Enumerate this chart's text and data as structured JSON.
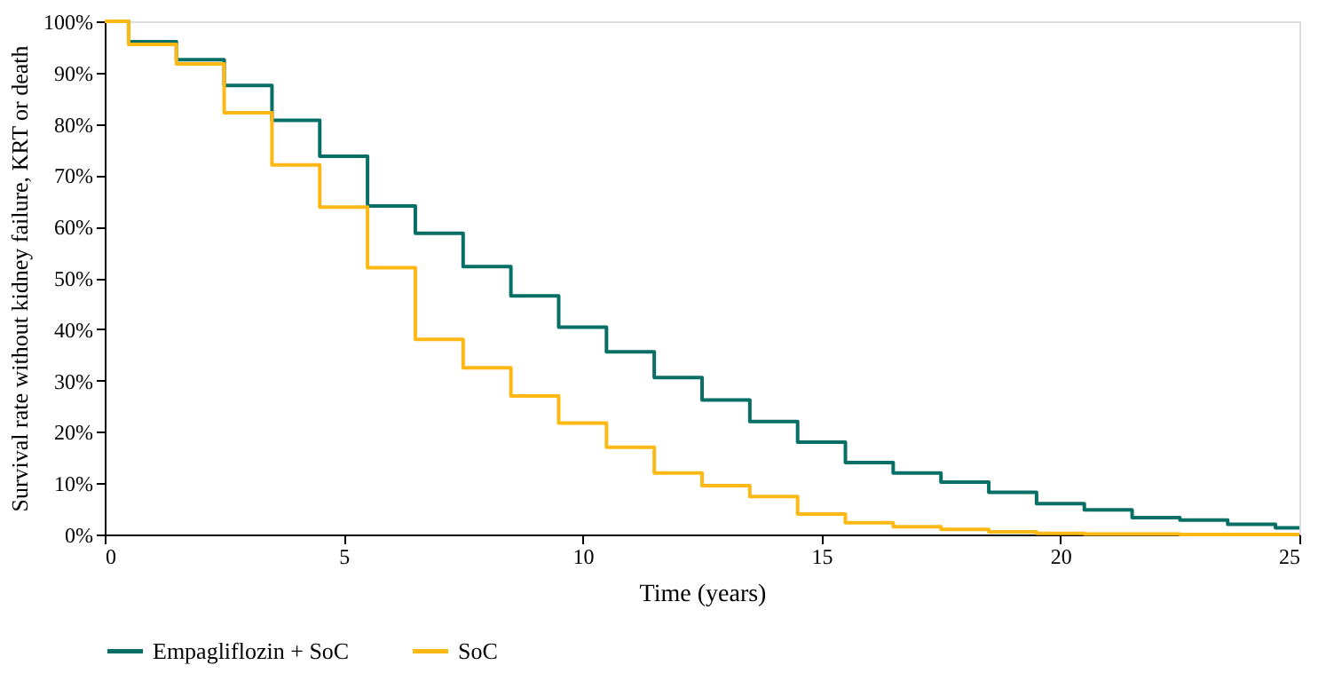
{
  "chart_data": {
    "type": "step",
    "xlabel": "Time (years)",
    "ylabel": "Survival rate without kidney failure, KRT or death",
    "x": [
      0,
      0.5,
      1.5,
      2.5,
      3.5,
      4.5,
      5.5,
      6.5,
      7.5,
      8.5,
      9.5,
      10.5,
      11.5,
      12.5,
      13.5,
      14.5,
      15.5,
      16.5,
      17.5,
      18.5,
      19.5,
      20.5,
      21.5,
      22.5,
      23.5,
      24.5,
      25
    ],
    "series": [
      {
        "name": "Empagliflozin + SoC",
        "color": "#076f66",
        "values": [
          100,
          96,
          92.5,
          87.5,
          80.7,
          73.7,
          64,
          58.7,
          52.2,
          46.5,
          40.4,
          35.6,
          30.6,
          26.2,
          22,
          18,
          14,
          12,
          10.2,
          8.2,
          6,
          4.8,
          3.3,
          2.8,
          2,
          1.3,
          1.3
        ]
      },
      {
        "name": "SoC",
        "color": "#fdb813",
        "values": [
          100,
          95.5,
          91.7,
          82.2,
          72,
          63.8,
          52,
          38,
          32.5,
          27,
          21.7,
          17,
          12,
          9.5,
          7.4,
          4,
          2.3,
          1.5,
          1,
          0.5,
          0.2,
          0.1,
          0.1,
          0,
          0,
          0,
          0
        ]
      }
    ],
    "xlim": [
      0,
      25
    ],
    "xticks": [
      0,
      5,
      10,
      15,
      20,
      25
    ],
    "ylim": [
      0,
      100
    ],
    "yticks": [
      {
        "value": 0,
        "label": "0%"
      },
      {
        "value": 10,
        "label": "10%"
      },
      {
        "value": 20,
        "label": "20%"
      },
      {
        "value": 30,
        "label": "30%"
      },
      {
        "value": 40,
        "label": "40%"
      },
      {
        "value": 50,
        "label": "50%"
      },
      {
        "value": 60,
        "label": "60%"
      },
      {
        "value": 70,
        "label": "70%"
      },
      {
        "value": 80,
        "label": "80%"
      },
      {
        "value": 90,
        "label": "90%"
      },
      {
        "value": 100,
        "label": "100%"
      }
    ],
    "grid": false,
    "legend": "bottom",
    "line_style": "solid",
    "marker": "none"
  }
}
